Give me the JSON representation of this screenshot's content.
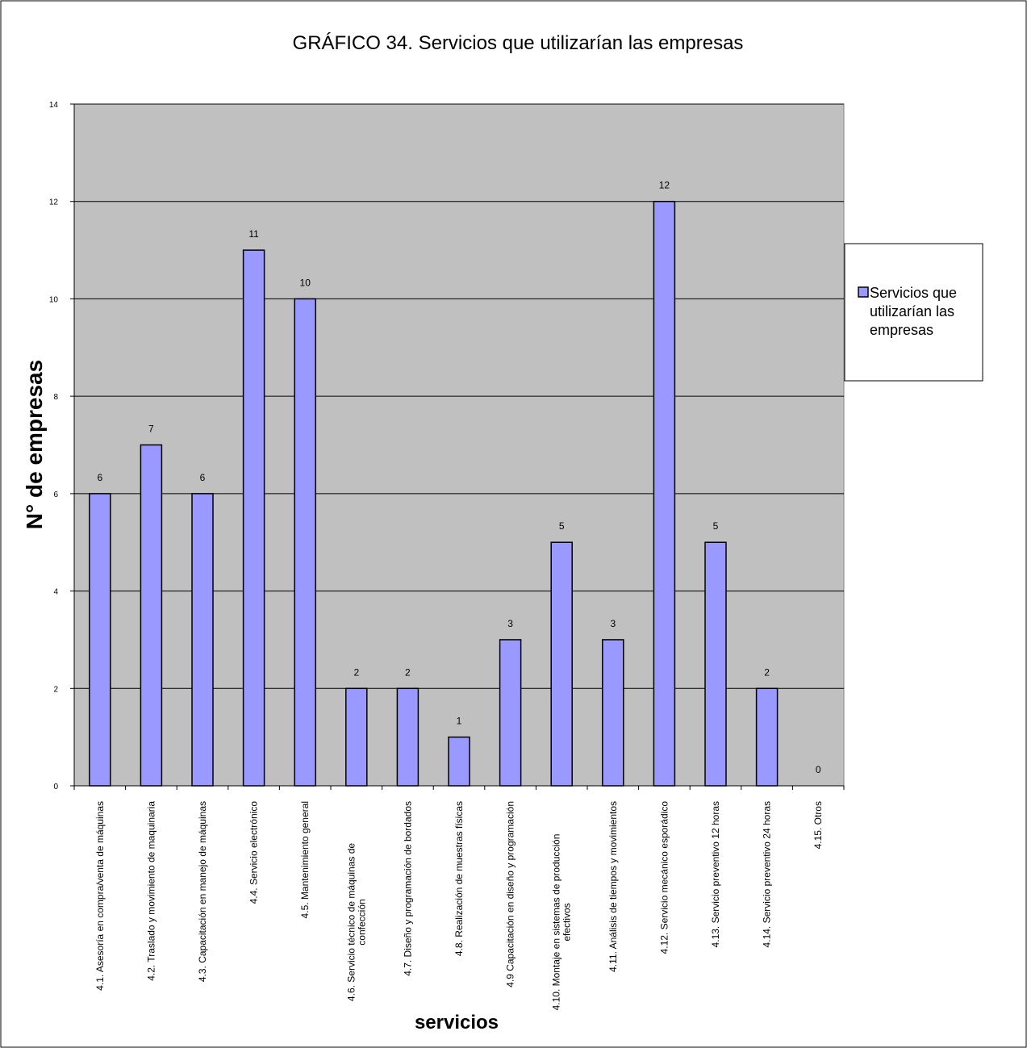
{
  "chart_data": {
    "type": "bar",
    "title": "GRÁFICO 34. Servicios que utilizarían las empresas",
    "xlabel": "servicios",
    "ylabel": "N° de empresas",
    "ylim": [
      0,
      14
    ],
    "yticks": [
      0,
      2,
      4,
      6,
      8,
      10,
      12,
      14
    ],
    "grid": true,
    "legend_position": "right",
    "categories": [
      "4.1. Asesoría en compra/venta de máquinas",
      "4.2.  Traslado y movimiento de maquinaria",
      "4.3.  Capacitación en manejo de máquinas",
      "4.4. Servicio electrónico",
      "4.5.  Mantenimiento general",
      "4.6. Servicio técnico de máquinas de confección",
      "4.7. Diseño y programación de bordados",
      "4.8. Realización de muestras físicas",
      "4.9 Capacitación en diseño y programación",
      "4.10. Montaje en sistemas de producción efectivos",
      "4.11. Análisis de tiempos y movimientos",
      "4.12. Servicio mecánico esporádico",
      "4.13. Servicio preventivo 12 horas",
      "4.14. Servicio preventivo 24 horas",
      "4.15. Otros"
    ],
    "category_lines": [
      [
        "4.1. Asesoría en compra/venta de máquinas"
      ],
      [
        "4.2.  Traslado y movimiento de maquinaria"
      ],
      [
        "4.3.  Capacitación en manejo de máquinas"
      ],
      [
        "4.4. Servicio electrónico"
      ],
      [
        "4.5.  Mantenimiento general"
      ],
      [
        "4.6. Servicio técnico de máquinas de",
        "confección"
      ],
      [
        "4.7. Diseño y programación de bordados"
      ],
      [
        "4.8. Realización de muestras físicas"
      ],
      [
        "4.9 Capacitación en diseño y programación"
      ],
      [
        "4.10. Montaje en sistemas de producción",
        "efectivos"
      ],
      [
        "4.11. Análisis de tiempos y movimientos"
      ],
      [
        "4.12. Servicio mecánico esporádico"
      ],
      [
        "4.13. Servicio preventivo 12 horas"
      ],
      [
        "4.14. Servicio preventivo 24 horas"
      ],
      [
        "4.15. Otros"
      ]
    ],
    "series": [
      {
        "name": "Servicios que utilizarían las empresas",
        "legend_lines": [
          "Servicios que",
          "utilizarían las",
          "empresas"
        ],
        "color": "#9999FF",
        "values": [
          6,
          7,
          6,
          11,
          10,
          2,
          2,
          1,
          3,
          5,
          3,
          12,
          5,
          2,
          0
        ]
      }
    ],
    "plot_background": "#C0C0C0"
  }
}
